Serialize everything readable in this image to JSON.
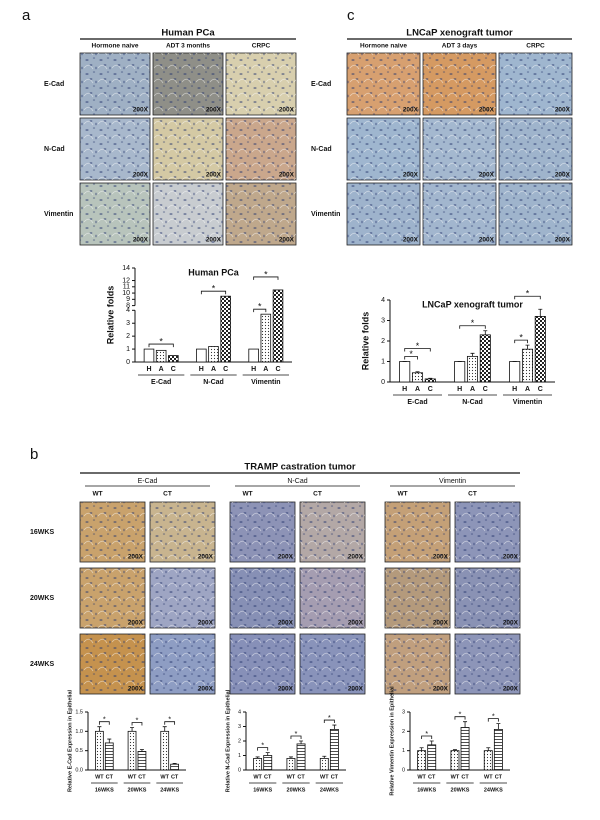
{
  "panel_a": {
    "label": "a",
    "title": "Human PCa",
    "columns": [
      "Hormone naive",
      "ADT 3 months",
      "CRPC"
    ],
    "rows": [
      "E-Cad",
      "N-Cad",
      "Vimentin"
    ],
    "magnification": "200X"
  },
  "panel_c": {
    "label": "c",
    "title": "LNCaP xenograft tumor",
    "columns": [
      "Hormone naive",
      "ADT 3 days",
      "CRPC"
    ],
    "rows": [
      "E-Cad",
      "N-Cad",
      "Vimentin"
    ],
    "magnification": "200X"
  },
  "panel_b": {
    "label": "b",
    "title": "TRAMP castration tumor",
    "groups": [
      "E-Cad",
      "N-Cad",
      "Vimentin"
    ],
    "columns": [
      "WT",
      "CT"
    ],
    "rows": [
      "16WKS",
      "20WKS",
      "24WKS"
    ],
    "magnification": "200X"
  },
  "chart_data": [
    {
      "type": "bar",
      "title": "Human PCa",
      "ylabel": "Relative folds",
      "categories": [
        "H",
        "A",
        "C",
        "H",
        "A",
        "C",
        "H",
        "A",
        "C"
      ],
      "groups": [
        "E-Cad",
        "N-Cad",
        "Vimentin"
      ],
      "values": [
        1,
        0.9,
        0.5,
        1,
        1.2,
        9.5,
        1,
        3.7,
        10.5
      ],
      "ylim": [
        0,
        14
      ],
      "axis_break": [
        4,
        8
      ],
      "yticks": [
        0,
        1,
        2,
        3,
        4,
        8,
        9,
        10,
        11,
        12,
        14
      ],
      "significance": [
        {
          "pair": [
            0,
            2
          ],
          "label": "*"
        },
        {
          "pair": [
            3,
            5
          ],
          "label": "*"
        },
        {
          "pair": [
            6,
            7
          ],
          "label": "*"
        },
        {
          "pair": [
            6,
            8
          ],
          "label": "*"
        }
      ]
    },
    {
      "type": "bar",
      "title": "LNCaP xenograft tumor",
      "ylabel": "Relative folds",
      "categories": [
        "H",
        "A",
        "C",
        "H",
        "A",
        "C",
        "H",
        "A",
        "C"
      ],
      "groups": [
        "E-Cad",
        "N-Cad",
        "Vimentin"
      ],
      "values": [
        1,
        0.45,
        0.15,
        1,
        1.25,
        2.3,
        1,
        1.6,
        3.2
      ],
      "errors": [
        0,
        0.05,
        0.03,
        0,
        0.15,
        0.2,
        0,
        0.2,
        0.35
      ],
      "ylim": [
        0,
        4
      ],
      "yticks": [
        0,
        1,
        2,
        3,
        4
      ],
      "significance": [
        {
          "pair": [
            0,
            1
          ],
          "label": "*"
        },
        {
          "pair": [
            0,
            2
          ],
          "label": "*"
        },
        {
          "pair": [
            3,
            5
          ],
          "label": "*"
        },
        {
          "pair": [
            6,
            7
          ],
          "label": "*"
        },
        {
          "pair": [
            6,
            8
          ],
          "label": "*"
        }
      ]
    },
    {
      "type": "bar",
      "ylabel": "Relative E-Cad Expression in Epithelial",
      "categories": [
        "WT",
        "CT",
        "WT",
        "CT",
        "WT",
        "CT"
      ],
      "groups": [
        "16WKS",
        "20WKS",
        "24WKS"
      ],
      "values": [
        1.0,
        0.7,
        1.0,
        0.48,
        1.0,
        0.15
      ],
      "errors": [
        0.12,
        0.1,
        0.1,
        0.05,
        0.12,
        0.02
      ],
      "ylim": [
        0,
        1.5
      ],
      "yticks": [
        {
          "value": 0,
          "label": "0.0"
        },
        0.5,
        {
          "value": 1,
          "label": "1.0"
        },
        1.5
      ],
      "significance": [
        {
          "pair": [
            0,
            1
          ],
          "label": "*"
        },
        {
          "pair": [
            2,
            3
          ],
          "label": "*"
        },
        {
          "pair": [
            4,
            5
          ],
          "label": "*"
        }
      ]
    },
    {
      "type": "bar",
      "ylabel": "Relative N-Cad Expression in Epithelial",
      "categories": [
        "WT",
        "CT",
        "WT",
        "CT",
        "WT",
        "CT"
      ],
      "groups": [
        "16WKS",
        "20WKS",
        "24WKS"
      ],
      "values": [
        0.8,
        1.0,
        0.8,
        1.8,
        0.8,
        2.8
      ],
      "errors": [
        0.1,
        0.2,
        0.1,
        0.2,
        0.15,
        0.3
      ],
      "ylim": [
        0,
        4
      ],
      "yticks": [
        0,
        1,
        2,
        3,
        4
      ],
      "significance": [
        {
          "pair": [
            0,
            1
          ],
          "label": "*"
        },
        {
          "pair": [
            2,
            3
          ],
          "label": "*"
        },
        {
          "pair": [
            4,
            5
          ],
          "label": "*"
        }
      ]
    },
    {
      "type": "bar",
      "ylabel": "Relative Vimentin Expression in Epithelial",
      "categories": [
        "WT",
        "CT",
        "WT",
        "CT",
        "WT",
        "CT"
      ],
      "groups": [
        "16WKS",
        "20WKS",
        "24WKS"
      ],
      "values": [
        1.0,
        1.3,
        1.0,
        2.2,
        1.0,
        2.1
      ],
      "errors": [
        0.15,
        0.2,
        0.05,
        0.3,
        0.15,
        0.3
      ],
      "ylim": [
        0,
        3
      ],
      "yticks": [
        0,
        1,
        2,
        3
      ],
      "significance": [
        {
          "pair": [
            0,
            1
          ],
          "label": "*"
        },
        {
          "pair": [
            2,
            3
          ],
          "label": "*"
        },
        {
          "pair": [
            4,
            5
          ],
          "label": "*"
        }
      ]
    }
  ]
}
